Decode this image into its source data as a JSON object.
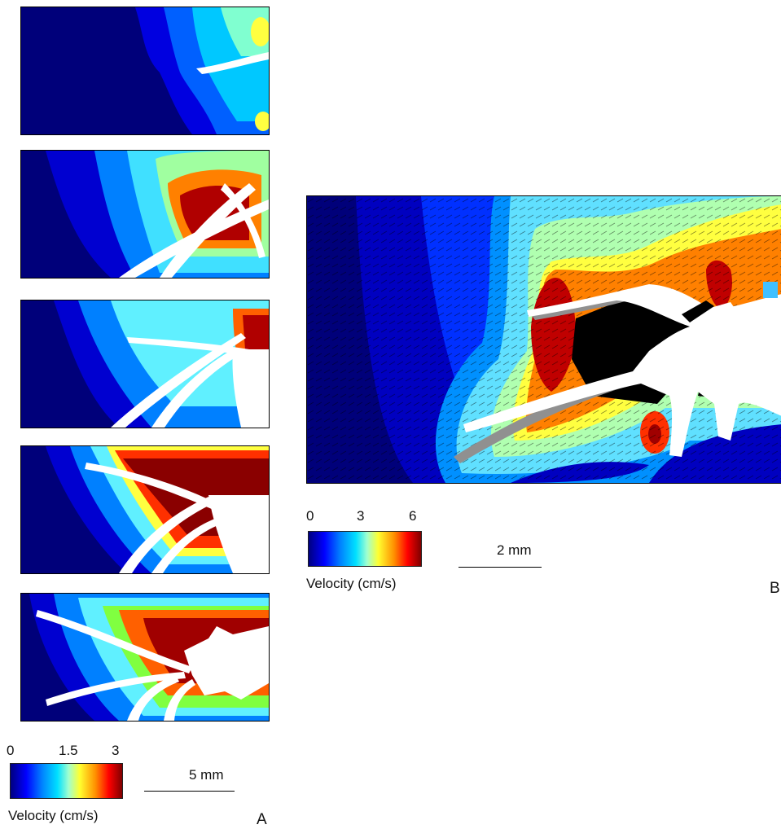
{
  "panel_a": {
    "colorbar": {
      "ticks": [
        "0",
        "1.5",
        "3"
      ],
      "label": "Velocity (cm/s)"
    },
    "scalebar_label": "5 mm",
    "letter": "A"
  },
  "panel_b": {
    "colorbar": {
      "ticks": [
        "0",
        "3",
        "6"
      ],
      "label": "Velocity (cm/s)"
    },
    "scalebar_label": "2 mm",
    "letter": "B"
  },
  "colors": {
    "field_low": "#00007a",
    "field_high": "#7f0000",
    "appendage": "#ffffff",
    "shadow": "#909090"
  }
}
